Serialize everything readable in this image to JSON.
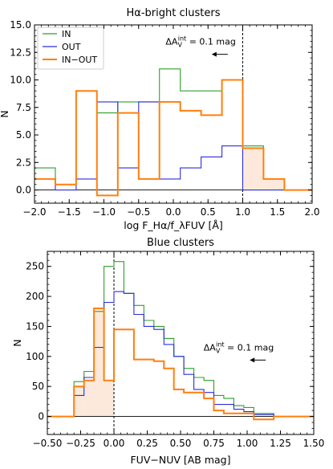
{
  "chart_data": [
    {
      "type": "step",
      "title": "Hα-bright clusters",
      "xlabel": "log F_Hα/f_λFUV [Å]",
      "ylabel": "N",
      "xlim": [
        -2.0,
        2.0
      ],
      "ylim": [
        -1.2,
        15.0
      ],
      "xticks": [
        -2.0,
        -1.5,
        -1.0,
        -0.5,
        0.0,
        0.5,
        1.0,
        1.5,
        2.0
      ],
      "xtick_labels": [
        "−2.0",
        "−1.5",
        "−1.0",
        "−0.5",
        "0.0",
        "0.5",
        "1.0",
        "1.5",
        "2.0"
      ],
      "yticks": [
        0.0,
        2.5,
        5.0,
        7.5,
        10.0,
        12.5,
        15.0
      ],
      "ytick_labels": [
        "0.0",
        "2.5",
        "5.0",
        "7.5",
        "10.0",
        "12.5",
        "15.0"
      ],
      "legend": {
        "position": "upper-left"
      },
      "annotation": {
        "text_main": "ΔA",
        "text_sub": "V",
        "text_sup": "int",
        "text_tail": " = 0.1 mag",
        "arrow": "left",
        "x": 0.9,
        "y": 13.2
      },
      "vline": 1.0,
      "shade_from": 1.0,
      "edges": [
        -2.0,
        -1.7,
        -1.4,
        -1.1,
        -0.8,
        -0.5,
        -0.2,
        0.1,
        0.4,
        0.7,
        1.0,
        1.3,
        1.6,
        2.0
      ],
      "series": [
        {
          "name": "IN",
          "color": "#2ca02c",
          "values": [
            2,
            0.5,
            9,
            7,
            8,
            8,
            11,
            9,
            9,
            10,
            4,
            1,
            0
          ]
        },
        {
          "name": "OUT",
          "color": "#2c2cdf",
          "values": [
            1,
            0,
            1,
            8,
            2,
            8,
            1,
            2,
            3,
            4,
            0,
            0,
            0
          ]
        },
        {
          "name": "IN−OUT",
          "color": "#ff7f0e",
          "values": [
            1,
            0.5,
            9,
            -0.5,
            7,
            1,
            8,
            7.2,
            6.8,
            10,
            3.8,
            1,
            0
          ]
        }
      ]
    },
    {
      "type": "step",
      "title": "Blue clusters",
      "xlabel": "FUV−NUV [AB mag]",
      "ylabel": "N",
      "xlim": [
        -0.5,
        1.5
      ],
      "ylim": [
        -30,
        275
      ],
      "xticks": [
        -0.5,
        -0.25,
        0.0,
        0.25,
        0.5,
        0.75,
        1.0,
        1.25,
        1.5
      ],
      "xtick_labels": [
        "−0.50",
        "−0.25",
        "0.00",
        "0.25",
        "0.50",
        "0.75",
        "1.00",
        "1.25",
        "1.50"
      ],
      "yticks": [
        0,
        50,
        100,
        150,
        200,
        250
      ],
      "ytick_labels": [
        "0",
        "50",
        "100",
        "150",
        "200",
        "250"
      ],
      "annotation": {
        "text_main": "ΔA",
        "text_sub": "V",
        "text_sup": "int",
        "text_tail": " = 0.1 mag",
        "arrow": "left",
        "x": 1.2,
        "y": 110
      },
      "vline": 0.0,
      "shade_to": 0.0,
      "edges": [
        -0.5,
        -0.3,
        -0.225,
        -0.15,
        -0.075,
        0.0,
        0.075,
        0.15,
        0.225,
        0.3,
        0.375,
        0.45,
        0.525,
        0.6,
        0.675,
        0.75,
        0.825,
        0.9,
        0.975,
        1.05,
        1.125,
        1.2,
        1.275,
        1.35,
        1.5
      ],
      "series": [
        {
          "name": "IN",
          "color": "#2ca02c",
          "values": [
            0,
            58,
            75,
            175,
            250,
            258,
            205,
            185,
            160,
            150,
            130,
            100,
            80,
            65,
            60,
            35,
            30,
            18,
            15,
            5,
            5,
            0,
            0,
            0
          ]
        },
        {
          "name": "OUT",
          "color": "#2c2cdf",
          "values": [
            0,
            35,
            65,
            115,
            190,
            208,
            205,
            170,
            150,
            145,
            120,
            100,
            70,
            45,
            40,
            20,
            20,
            12,
            8,
            3,
            3,
            0,
            0,
            0
          ]
        },
        {
          "name": "IN−OUT",
          "color": "#ff7f0e",
          "values": [
            0,
            50,
            60,
            180,
            60,
            145,
            145,
            95,
            95,
            92,
            80,
            45,
            40,
            40,
            30,
            10,
            5,
            5,
            5,
            -5,
            -5,
            0,
            0,
            0
          ]
        }
      ]
    }
  ]
}
